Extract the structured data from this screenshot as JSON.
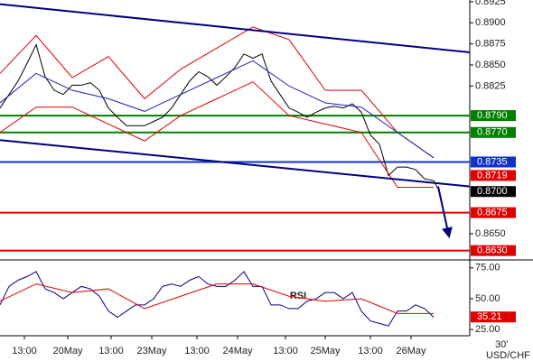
{
  "symbol": "USD/CHF",
  "timeframe": "30'",
  "chart_data": [
    {
      "type": "line",
      "xlim": [
        0,
        520
      ],
      "ylim": [
        0.862,
        0.8927
      ],
      "xticks": [
        {
          "value": 27,
          "label": "13:00"
        },
        {
          "value": 75,
          "label": "20May"
        },
        {
          "value": 123,
          "label": "13:00"
        },
        {
          "value": 168,
          "label": "23May"
        },
        {
          "value": 218,
          "label": "13:00"
        },
        {
          "value": 263,
          "label": "24May"
        },
        {
          "value": 316,
          "label": "13:00"
        },
        {
          "value": 360,
          "label": "25May"
        },
        {
          "value": 410,
          "label": "13:00"
        },
        {
          "value": 455,
          "label": "26May"
        }
      ],
      "yticks": [
        {
          "value": 0.8925,
          "label": "0.8925"
        },
        {
          "value": 0.89,
          "label": "0.8900"
        },
        {
          "value": 0.8875,
          "label": "0.8875"
        },
        {
          "value": 0.885,
          "label": "0.8850"
        },
        {
          "value": 0.8825,
          "label": "0.8825"
        },
        {
          "value": 0.865,
          "label": "0.8650"
        }
      ],
      "series": [
        {
          "color": "#000000",
          "x": [
            0,
            10,
            20,
            30,
            40,
            50,
            60,
            70,
            80,
            90,
            100,
            110,
            120,
            130,
            140,
            150,
            160,
            170,
            180,
            190,
            200,
            210,
            220,
            230,
            240,
            250,
            260,
            270,
            280,
            290,
            300,
            310,
            320,
            330,
            340,
            350,
            360,
            370,
            380,
            390,
            400,
            410,
            420,
            430,
            440,
            450,
            460,
            470,
            480,
            485
          ],
          "values": [
            0.8799,
            0.8815,
            0.8831,
            0.8852,
            0.8874,
            0.8836,
            0.882,
            0.8815,
            0.8826,
            0.8826,
            0.8829,
            0.882,
            0.8799,
            0.8788,
            0.8778,
            0.8778,
            0.8778,
            0.8783,
            0.8788,
            0.8799,
            0.8815,
            0.8831,
            0.8842,
            0.8836,
            0.8826,
            0.8836,
            0.8847,
            0.8863,
            0.8858,
            0.8863,
            0.8831,
            0.8815,
            0.8799,
            0.8794,
            0.8788,
            0.8794,
            0.8799,
            0.8801,
            0.8799,
            0.8804,
            0.8794,
            0.8767,
            0.8756,
            0.8719,
            0.8729,
            0.8729,
            0.8726,
            0.8715,
            0.8713,
            0.8703
          ]
        },
        {
          "color": "#e00000",
          "x": [
            0,
            40,
            80,
            120,
            160,
            200,
            240,
            280,
            320,
            360,
            400,
            440,
            480
          ],
          "values": [
            0.884,
            0.8885,
            0.8835,
            0.886,
            0.881,
            0.8845,
            0.887,
            0.8895,
            0.888,
            0.882,
            0.882,
            0.877,
            0.874
          ]
        },
        {
          "color": "#e00000",
          "x": [
            0,
            40,
            80,
            120,
            160,
            200,
            240,
            280,
            320,
            360,
            400,
            440,
            480
          ],
          "values": [
            0.877,
            0.88,
            0.88,
            0.878,
            0.876,
            0.879,
            0.881,
            0.883,
            0.879,
            0.878,
            0.877,
            0.8705,
            0.8705
          ]
        },
        {
          "color": "#2020c0",
          "x": [
            0,
            40,
            80,
            120,
            160,
            200,
            240,
            280,
            320,
            360,
            400,
            440,
            480
          ],
          "values": [
            0.8805,
            0.884,
            0.882,
            0.881,
            0.8795,
            0.8815,
            0.8835,
            0.8855,
            0.8825,
            0.8805,
            0.88,
            0.877,
            0.874
          ]
        }
      ],
      "trendlines": [
        {
          "color": "#000080",
          "x": [
            0,
            520
          ],
          "values": [
            0.8922,
            0.8865
          ]
        },
        {
          "color": "#000080",
          "x": [
            0,
            520
          ],
          "values": [
            0.8761,
            0.8706
          ]
        },
        {
          "color": "#000080",
          "x": [
            485,
            497
          ],
          "values": [
            0.8706,
            0.8647
          ],
          "arrow": true
        }
      ],
      "levels": [
        {
          "value": 0.879,
          "label": "0.8790",
          "color": "#008000",
          "line": true
        },
        {
          "value": 0.877,
          "label": "0.8770",
          "color": "#008000",
          "line": true
        },
        {
          "value": 0.8735,
          "label": "0.8735",
          "color": "#1030d0",
          "line": true
        },
        {
          "value": 0.8719,
          "label": "0.8719",
          "color": "#e00000",
          "line": false
        },
        {
          "value": 0.87,
          "label": "0.8700",
          "color": "#000000",
          "line": false
        },
        {
          "value": 0.8675,
          "label": "0.8675",
          "color": "#e00000",
          "line": true
        },
        {
          "value": 0.863,
          "label": "0.8630",
          "color": "#e00000",
          "line": true
        }
      ]
    },
    {
      "type": "line",
      "title": "RSI",
      "xlim": [
        0,
        520
      ],
      "ylim": [
        20,
        80
      ],
      "yticks": [
        {
          "value": 75,
          "label": "75.00"
        },
        {
          "value": 50,
          "label": "50.00"
        },
        {
          "value": 25,
          "label": "25.00"
        }
      ],
      "series": [
        {
          "color": "#000080",
          "x": [
            0,
            10,
            20,
            30,
            40,
            50,
            60,
            70,
            80,
            90,
            100,
            110,
            120,
            130,
            140,
            150,
            160,
            170,
            180,
            190,
            200,
            210,
            220,
            230,
            240,
            250,
            260,
            270,
            280,
            290,
            300,
            310,
            320,
            330,
            340,
            350,
            360,
            370,
            380,
            390,
            400,
            410,
            420,
            430,
            440,
            450,
            460,
            470,
            480
          ],
          "values": [
            45,
            60,
            65,
            68,
            72,
            58,
            55,
            50,
            55,
            60,
            58,
            52,
            40,
            35,
            40,
            45,
            45,
            50,
            60,
            62,
            60,
            65,
            68,
            62,
            60,
            60,
            65,
            72,
            60,
            60,
            45,
            45,
            42,
            42,
            48,
            50,
            55,
            55,
            50,
            55,
            40,
            32,
            30,
            28,
            40,
            40,
            45,
            42,
            35
          ]
        },
        {
          "color": "#e00000",
          "x": [
            0,
            40,
            80,
            120,
            160,
            200,
            240,
            280,
            320,
            360,
            400,
            440,
            480
          ],
          "values": [
            48,
            62,
            55,
            58,
            42,
            52,
            62,
            62,
            52,
            48,
            50,
            38,
            38
          ]
        }
      ],
      "levels": [
        {
          "value": 35.21,
          "label": "35.21",
          "color": "#e00000",
          "line": false
        }
      ]
    }
  ]
}
